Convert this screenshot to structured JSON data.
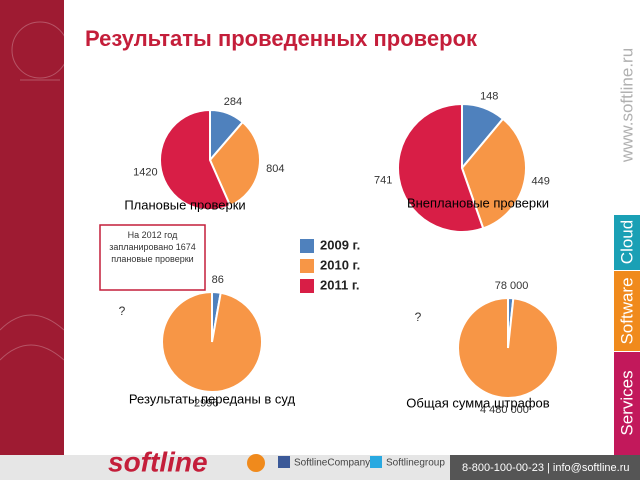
{
  "title": "Результаты проведенных проверок",
  "note": "На 2012 год запланировано 1674 плановые проверки",
  "sidebar": {
    "site": "www.softline.ru",
    "tabs": [
      "Cloud",
      "Software",
      "Services"
    ]
  },
  "footer": {
    "logo": "softline",
    "facebook": "SoftlineCompany",
    "twitter": "Softlinegroup",
    "contacts": "8-800-100-00-23 | info@softline.ru"
  },
  "chart_data": [
    {
      "type": "pie",
      "title": "Плановые проверки",
      "categories": [
        "2009 г.",
        "2010 г.",
        "2011 г."
      ],
      "values": [
        284,
        804,
        1420
      ],
      "colors": [
        "#4f81bd",
        "#f79646",
        "#d81e46"
      ]
    },
    {
      "type": "pie",
      "title": "Внеплановые проверки",
      "categories": [
        "2009 г.",
        "2010 г.",
        "2011 г."
      ],
      "values": [
        148,
        449,
        741
      ],
      "colors": [
        "#4f81bd",
        "#f79646",
        "#d81e46"
      ]
    },
    {
      "type": "pie",
      "title": "Результаты переданы в суд",
      "categories": [
        "2009 г.",
        "2010 г.",
        "2011 г."
      ],
      "values": [
        86,
        2996,
        null
      ],
      "value_labels": [
        "86",
        "2996",
        "?"
      ],
      "colors": [
        "#4f81bd",
        "#f79646",
        "#d81e46"
      ]
    },
    {
      "type": "pie",
      "title": "Общая сумма штрафов",
      "categories": [
        "2009 г.",
        "2010 г.",
        "2011 г."
      ],
      "values": [
        78000,
        4480000,
        null
      ],
      "value_labels": [
        "78 000",
        "4 480 000",
        "?"
      ],
      "colors": [
        "#4f81bd",
        "#f79646",
        "#d81e46"
      ]
    }
  ]
}
